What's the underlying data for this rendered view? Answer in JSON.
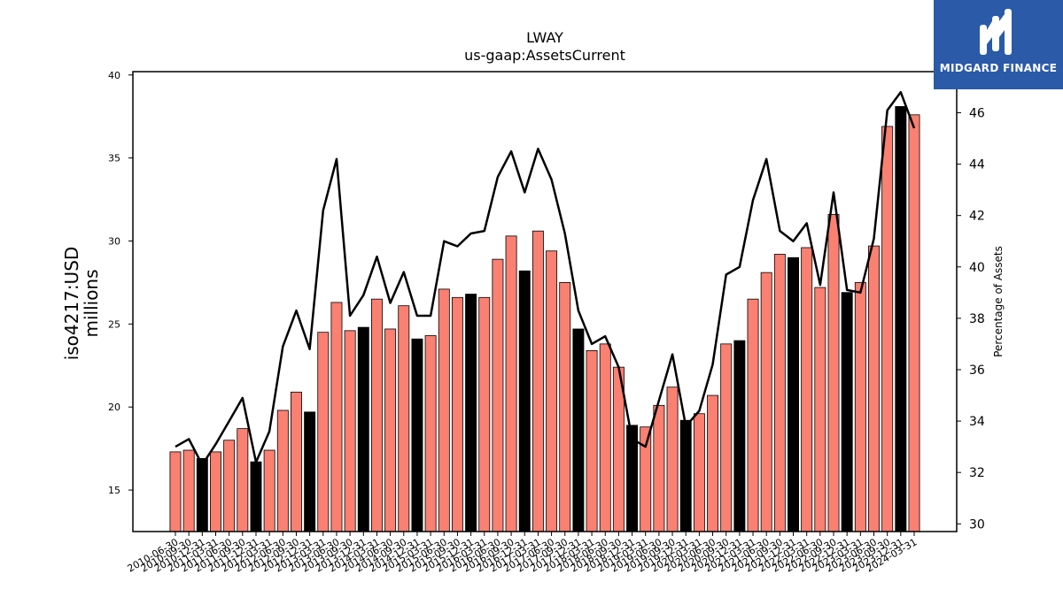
{
  "chart_data": {
    "type": "bar",
    "title": "LWAY",
    "subtitle": "us-gaap:AssetsCurrent",
    "ylabel_line1": "iso4217:USD",
    "ylabel_line2": "millions",
    "y2label": "Percentage of Assets",
    "ylim": [
      12.5,
      40.2
    ],
    "y2lim": [
      29.7,
      47.6
    ],
    "yticks": [
      15,
      20,
      25,
      30,
      35,
      40
    ],
    "y2ticks": [
      30,
      32,
      34,
      36,
      38,
      40,
      42,
      44,
      46
    ],
    "colors": {
      "bar": "#fa8072",
      "bar_highlight": "#000000",
      "line": "#000000"
    },
    "categories": [
      "2010-06-30",
      "2010-09-30",
      "2010-12-31",
      "2011-03-31",
      "2011-06-30",
      "2011-09-30",
      "2011-12-31",
      "2012-03-31",
      "2012-06-30",
      "2012-09-30",
      "2012-12-31",
      "2013-03-31",
      "2013-06-30",
      "2013-09-30",
      "2013-12-31",
      "2014-03-31",
      "2014-06-30",
      "2014-09-30",
      "2014-12-31",
      "2015-03-31",
      "2015-06-30",
      "2015-09-30",
      "2015-12-31",
      "2016-03-31",
      "2016-06-30",
      "2016-09-30",
      "2016-12-31",
      "2017-03-31",
      "2017-06-30",
      "2017-09-30",
      "2017-12-31",
      "2018-03-31",
      "2018-06-30",
      "2018-09-30",
      "2018-12-31",
      "2019-03-31",
      "2019-06-30",
      "2019-09-30",
      "2019-12-31",
      "2020-03-31",
      "2020-06-30",
      "2020-09-30",
      "2020-12-31",
      "2021-03-31",
      "2021-06-30",
      "2021-09-30",
      "2021-12-31",
      "2022-03-31",
      "2022-06-30",
      "2022-09-30",
      "2022-12-31",
      "2023-03-31",
      "2023-06-30",
      "2023-09-30",
      "2023-12-31",
      "2024-03-31"
    ],
    "series": [
      {
        "type": "bar",
        "values": [
          17.3,
          17.4,
          16.9,
          17.3,
          18.0,
          18.7,
          16.7,
          17.4,
          19.8,
          20.9,
          19.7,
          24.5,
          26.3,
          24.6,
          24.8,
          26.5,
          24.7,
          26.1,
          24.1,
          24.3,
          27.1,
          26.6,
          26.8,
          26.6,
          28.9,
          30.3,
          28.2,
          30.6,
          29.4,
          27.5,
          24.7,
          23.4,
          23.8,
          22.4,
          18.9,
          18.8,
          20.1,
          21.2,
          19.2,
          19.6,
          20.7,
          23.8,
          24.0,
          26.5,
          28.1,
          29.2,
          29.0,
          29.6,
          27.2,
          31.6,
          26.9,
          27.5,
          29.7,
          36.9,
          38.1,
          37.6
        ],
        "highlight": [
          false,
          false,
          true,
          false,
          false,
          false,
          true,
          false,
          false,
          false,
          true,
          false,
          false,
          false,
          true,
          false,
          false,
          false,
          true,
          false,
          false,
          false,
          true,
          false,
          false,
          false,
          true,
          false,
          false,
          false,
          true,
          false,
          false,
          false,
          true,
          false,
          false,
          false,
          true,
          false,
          false,
          false,
          true,
          false,
          false,
          false,
          true,
          false,
          false,
          false,
          true,
          false,
          false,
          false,
          true,
          false
        ]
      },
      {
        "type": "line",
        "axis": "secondary",
        "values": [
          33.0,
          33.3,
          32.3,
          33.1,
          34.0,
          34.9,
          32.4,
          33.6,
          36.9,
          38.3,
          36.8,
          42.2,
          44.2,
          38.1,
          38.9,
          40.4,
          38.6,
          39.8,
          38.1,
          38.1,
          41.0,
          40.8,
          41.3,
          41.4,
          43.5,
          44.5,
          42.9,
          44.6,
          43.4,
          41.3,
          38.3,
          37.0,
          37.3,
          36.1,
          33.3,
          33.0,
          34.8,
          36.6,
          33.8,
          34.4,
          36.2,
          39.7,
          40.0,
          42.6,
          44.2,
          41.4,
          41.0,
          41.7,
          39.3,
          42.9,
          39.1,
          39.0,
          41.1,
          46.1,
          46.8,
          45.4
        ]
      }
    ]
  },
  "logo": {
    "text": "MIDGARD FINANCE"
  }
}
